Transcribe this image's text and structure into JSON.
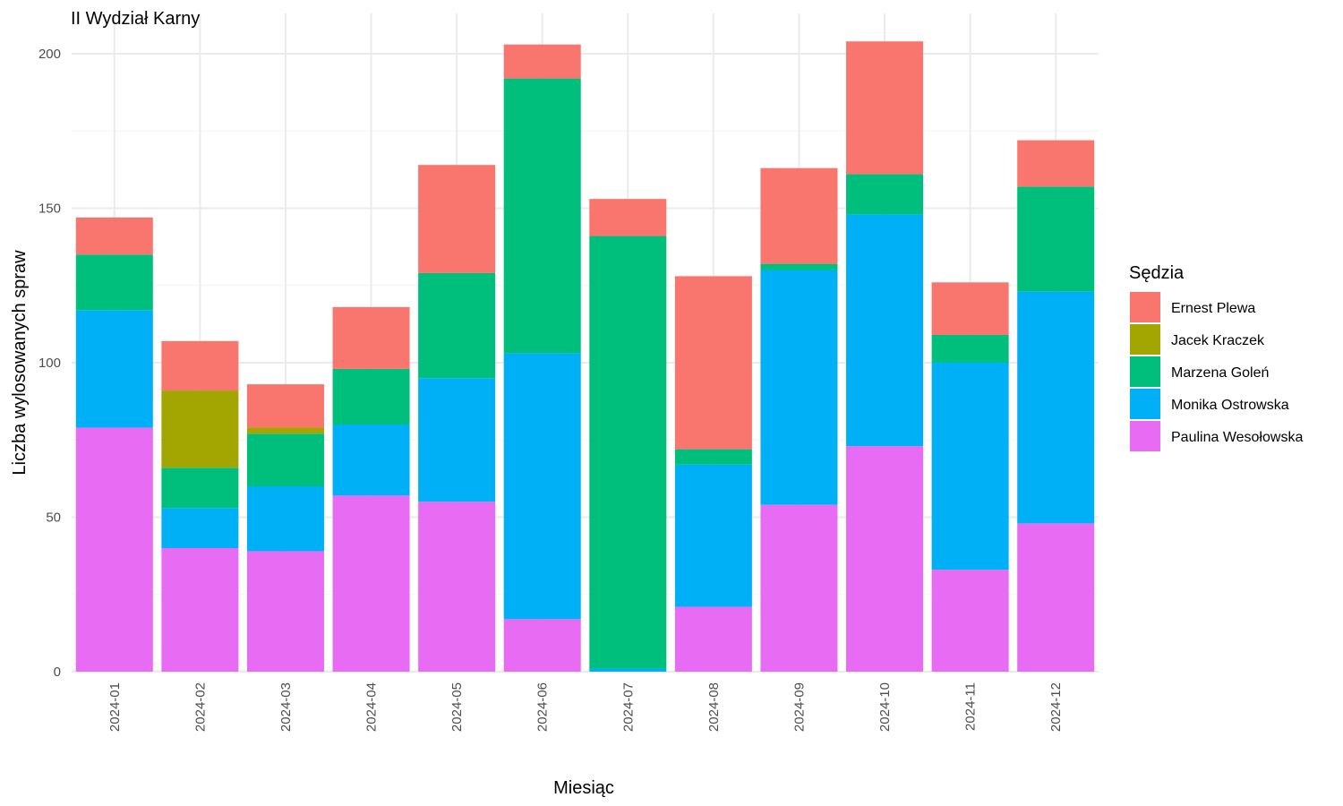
{
  "chart_data": {
    "type": "bar",
    "stacked": true,
    "title": "II Wydział Karny",
    "xlabel": "Miesiąc",
    "ylabel": "Liczba wylosowanych spraw",
    "ylim": [
      0,
      210
    ],
    "yticks": [
      0,
      50,
      100,
      150,
      200
    ],
    "grid": true,
    "legend_title": "Sędzia",
    "legend_position": "right",
    "categories": [
      "2024-01",
      "2024-02",
      "2024-03",
      "2024-04",
      "2024-05",
      "2024-06",
      "2024-07",
      "2024-08",
      "2024-09",
      "2024-10",
      "2024-11",
      "2024-12"
    ],
    "series": [
      {
        "name": "Paulina Wesołowska",
        "color": "#E76BF3",
        "values": [
          79,
          40,
          39,
          57,
          55,
          17,
          0,
          21,
          54,
          73,
          33,
          48
        ]
      },
      {
        "name": "Monika Ostrowska",
        "color": "#00B0F6",
        "values": [
          38,
          13,
          21,
          23,
          40,
          86,
          1,
          46,
          76,
          75,
          67,
          75
        ]
      },
      {
        "name": "Marzena Goleń",
        "color": "#00BF7D",
        "values": [
          18,
          13,
          17,
          18,
          34,
          89,
          140,
          5,
          2,
          13,
          9,
          34
        ]
      },
      {
        "name": "Jacek Kraczek",
        "color": "#A3A500",
        "values": [
          0,
          25,
          2,
          0,
          0,
          0,
          0,
          0,
          0,
          0,
          0,
          0
        ]
      },
      {
        "name": "Ernest Plewa",
        "color": "#F8766D",
        "values": [
          12,
          16,
          14,
          20,
          35,
          11,
          12,
          56,
          31,
          43,
          17,
          15
        ]
      }
    ],
    "legend_order": [
      "Ernest Plewa",
      "Jacek Kraczek",
      "Marzena Goleń",
      "Monika Ostrowska",
      "Paulina Wesołowska"
    ]
  }
}
